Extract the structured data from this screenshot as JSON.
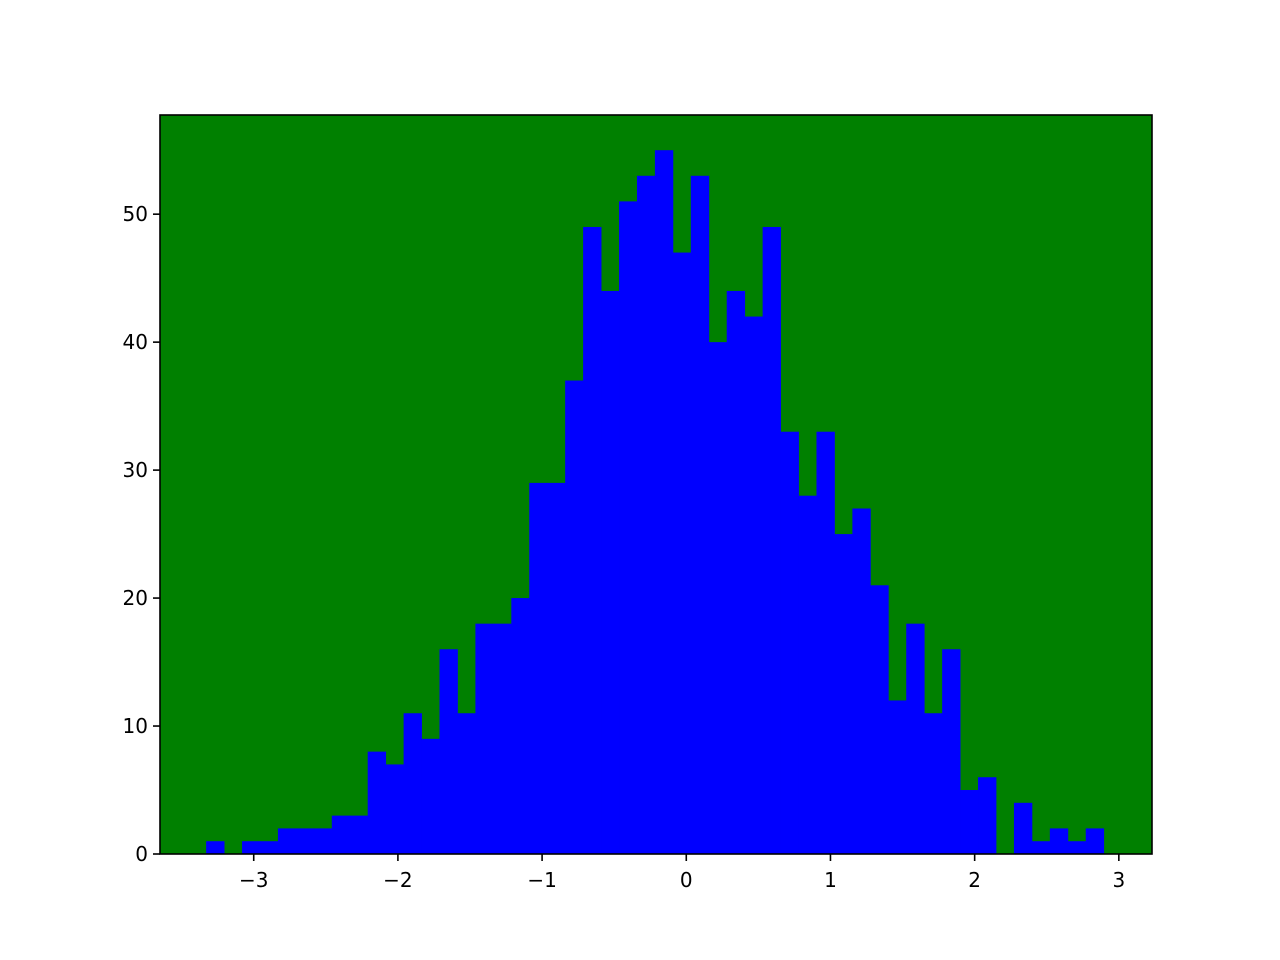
{
  "chart_data": {
    "type": "bar",
    "subtype": "histogram",
    "title": "",
    "xlabel": "",
    "ylabel": "",
    "bin_start": -3.33,
    "bin_width": 0.1245,
    "values": [
      1,
      0,
      1,
      1,
      2,
      2,
      2,
      3,
      3,
      8,
      7,
      11,
      9,
      16,
      11,
      18,
      18,
      20,
      29,
      29,
      37,
      49,
      44,
      51,
      53,
      55,
      47,
      53,
      40,
      44,
      42,
      49,
      33,
      28,
      33,
      25,
      27,
      21,
      12,
      18,
      11,
      16,
      5,
      6,
      0,
      4,
      1,
      2,
      1,
      2
    ],
    "xlim": [
      -3.65,
      3.23
    ],
    "ylim": [
      0,
      57.75
    ],
    "xticks": [
      {
        "value": -3,
        "label": "−3"
      },
      {
        "value": -2,
        "label": "−2"
      },
      {
        "value": -1,
        "label": "−1"
      },
      {
        "value": 0,
        "label": "0"
      },
      {
        "value": 1,
        "label": "1"
      },
      {
        "value": 2,
        "label": "2"
      },
      {
        "value": 3,
        "label": "3"
      }
    ],
    "yticks": [
      {
        "value": 0,
        "label": "0"
      },
      {
        "value": 10,
        "label": "10"
      },
      {
        "value": 20,
        "label": "20"
      },
      {
        "value": 30,
        "label": "30"
      },
      {
        "value": 40,
        "label": "40"
      },
      {
        "value": 50,
        "label": "50"
      }
    ],
    "grid": false,
    "colors": {
      "bar": "#0000ff",
      "plot_background": "#008000",
      "figure_background": "#ffffff",
      "axes": "#000000"
    }
  }
}
